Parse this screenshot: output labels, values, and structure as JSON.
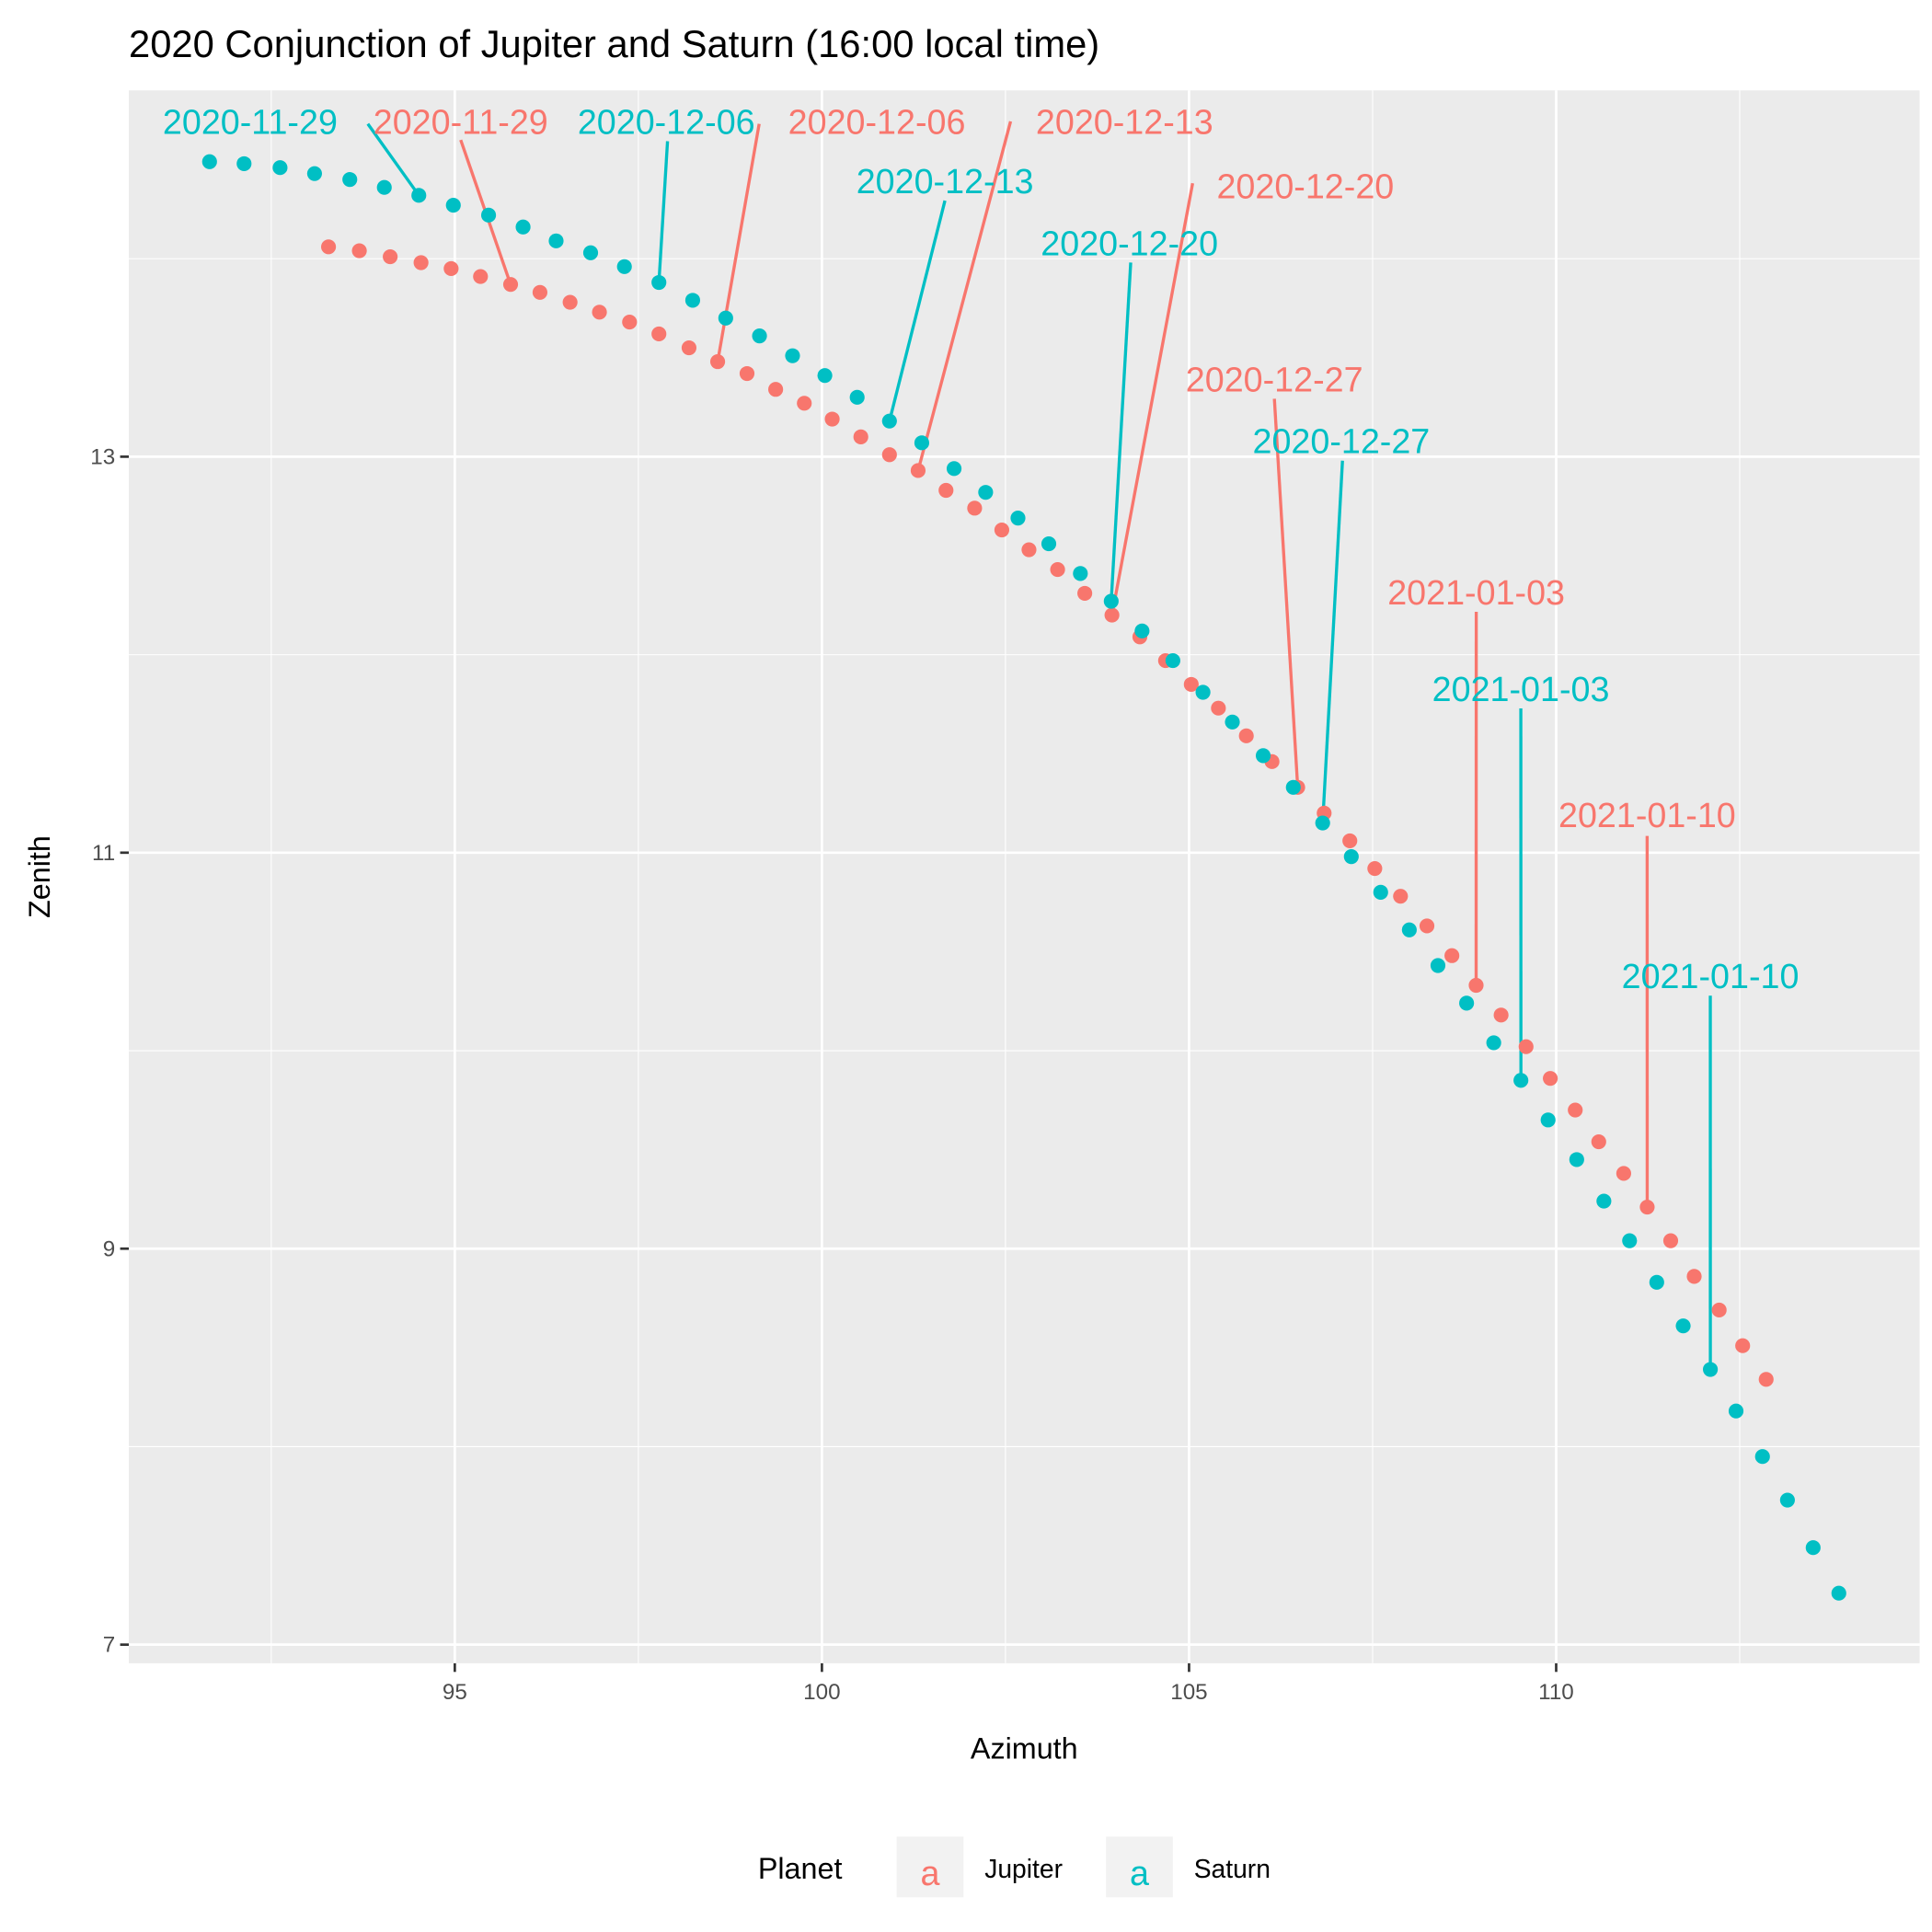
{
  "chart_data": {
    "type": "scatter",
    "title": "2020 Conjunction of Jupiter and Saturn (16:00 local time)",
    "xlabel": "Azimuth",
    "ylabel": "Zenith",
    "xlim": [
      90.56,
      114.95
    ],
    "ylim": [
      6.906,
      14.85
    ],
    "x_ticks": [
      95,
      100,
      105,
      110
    ],
    "x_tick_labels": [
      "95",
      "100",
      "105",
      "110"
    ],
    "y_ticks": [
      7,
      9,
      11,
      13
    ],
    "y_tick_labels": [
      "7",
      "9",
      "11",
      "13"
    ],
    "grid": true,
    "legend": {
      "title": "Planet",
      "position": "bottom",
      "entries": [
        "Jupiter",
        "Saturn"
      ],
      "key_glyph": "a"
    },
    "colors": {
      "Jupiter": "#F8766D",
      "Saturn": "#00BFC4",
      "panel": "#EBEBEB"
    },
    "series": [
      {
        "name": "Jupiter",
        "x": [
          93.28,
          93.7,
          94.12,
          94.54,
          94.95,
          95.35,
          95.76,
          96.16,
          96.57,
          96.97,
          97.38,
          97.78,
          98.19,
          98.58,
          98.98,
          99.37,
          99.76,
          100.14,
          100.53,
          100.92,
          101.31,
          101.69,
          102.08,
          102.45,
          102.82,
          103.21,
          103.58,
          103.95,
          104.33,
          104.68,
          105.03,
          105.4,
          105.78,
          106.13,
          106.48,
          106.84,
          107.19,
          107.53,
          107.88,
          108.24,
          108.58,
          108.91,
          109.25,
          109.59,
          109.92,
          110.26,
          110.58,
          110.92,
          111.24,
          111.56,
          111.88,
          112.22,
          112.54,
          112.86
        ],
        "y": [
          14.06,
          14.04,
          14.01,
          13.98,
          13.95,
          13.91,
          13.87,
          13.83,
          13.78,
          13.73,
          13.68,
          13.62,
          13.55,
          13.48,
          13.42,
          13.34,
          13.27,
          13.19,
          13.1,
          13.01,
          12.93,
          12.83,
          12.74,
          12.63,
          12.53,
          12.43,
          12.31,
          12.2,
          12.09,
          11.97,
          11.85,
          11.73,
          11.59,
          11.46,
          11.33,
          11.2,
          11.06,
          10.92,
          10.78,
          10.63,
          10.48,
          10.33,
          10.18,
          10.02,
          9.86,
          9.7,
          9.54,
          9.38,
          9.21,
          9.04,
          8.86,
          8.69,
          8.51,
          8.34
        ]
      },
      {
        "name": "Saturn",
        "x": [
          91.66,
          92.13,
          92.62,
          93.09,
          93.57,
          94.04,
          94.51,
          94.98,
          95.46,
          95.93,
          96.38,
          96.85,
          97.31,
          97.78,
          98.24,
          98.69,
          99.15,
          99.6,
          100.04,
          100.48,
          100.92,
          101.36,
          101.8,
          102.23,
          102.67,
          103.09,
          103.52,
          103.94,
          104.36,
          104.78,
          105.19,
          105.59,
          106.01,
          106.42,
          106.82,
          107.21,
          107.61,
          108.0,
          108.39,
          108.78,
          109.15,
          109.52,
          109.89,
          110.28,
          110.65,
          111.0,
          111.37,
          111.73,
          112.1,
          112.45,
          112.81,
          113.15,
          113.5,
          113.85
        ],
        "y": [
          14.49,
          14.48,
          14.46,
          14.43,
          14.4,
          14.36,
          14.32,
          14.27,
          14.22,
          14.16,
          14.09,
          14.03,
          13.96,
          13.88,
          13.79,
          13.7,
          13.61,
          13.51,
          13.41,
          13.3,
          13.18,
          13.07,
          12.94,
          12.82,
          12.69,
          12.56,
          12.41,
          12.27,
          12.12,
          11.97,
          11.81,
          11.66,
          11.49,
          11.33,
          11.15,
          10.98,
          10.8,
          10.61,
          10.43,
          10.24,
          10.04,
          9.85,
          9.65,
          9.45,
          9.24,
          9.04,
          8.83,
          8.61,
          8.39,
          8.18,
          7.95,
          7.73,
          7.49,
          7.26
        ]
      }
    ],
    "annotations": [
      {
        "planet": "Saturn",
        "text": "2020-11-29",
        "point_index": 6
      },
      {
        "planet": "Jupiter",
        "text": "2020-11-29",
        "point_index": 6
      },
      {
        "planet": "Saturn",
        "text": "2020-12-06",
        "point_index": 13
      },
      {
        "planet": "Jupiter",
        "text": "2020-12-06",
        "point_index": 13
      },
      {
        "planet": "Jupiter",
        "text": "2020-12-13",
        "point_index": 20
      },
      {
        "planet": "Saturn",
        "text": "2020-12-13",
        "point_index": 20
      },
      {
        "planet": "Jupiter",
        "text": "2020-12-20",
        "point_index": 27
      },
      {
        "planet": "Saturn",
        "text": "2020-12-20",
        "point_index": 27
      },
      {
        "planet": "Jupiter",
        "text": "2020-12-27",
        "point_index": 34
      },
      {
        "planet": "Saturn",
        "text": "2020-12-27",
        "point_index": 34
      },
      {
        "planet": "Jupiter",
        "text": "2021-01-03",
        "point_index": 41
      },
      {
        "planet": "Saturn",
        "text": "2021-01-03",
        "point_index": 41
      },
      {
        "planet": "Jupiter",
        "text": "2021-01-10",
        "point_index": 48
      },
      {
        "planet": "Saturn",
        "text": "2021-01-10",
        "point_index": 48
      }
    ]
  }
}
